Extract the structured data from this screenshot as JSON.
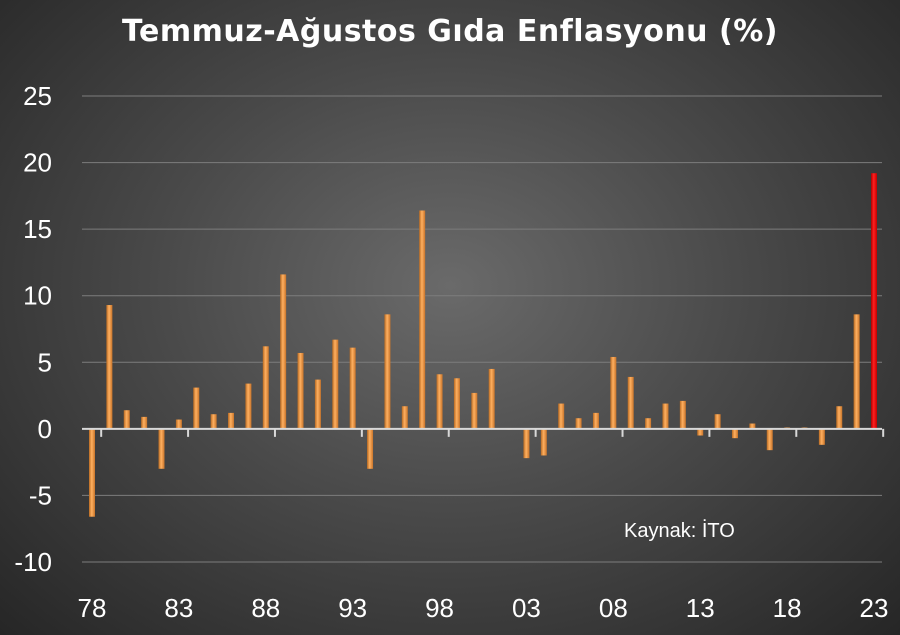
{
  "chart_data": {
    "type": "bar",
    "title": "Temmuz-Ağustos Gıda Enflasyonu (%)",
    "xlabel": "",
    "ylabel": "",
    "ylim": [
      -10,
      25
    ],
    "yticks": [
      "25",
      "20",
      "15",
      "10",
      "5",
      "0",
      "-5",
      "-10"
    ],
    "xtick_labels": [
      "78",
      "83",
      "88",
      "93",
      "98",
      "03",
      "08",
      "13",
      "18",
      "23"
    ],
    "categories": [
      "1978",
      "1979",
      "1980",
      "1981",
      "1982",
      "1983",
      "1984",
      "1985",
      "1986",
      "1987",
      "1988",
      "1989",
      "1990",
      "1991",
      "1992",
      "1993",
      "1994",
      "1995",
      "1996",
      "1997",
      "1998",
      "1999",
      "2000",
      "2001",
      "2002",
      "2003",
      "2004",
      "2005",
      "2006",
      "2007",
      "2008",
      "2009",
      "2010",
      "2011",
      "2012",
      "2013",
      "2014",
      "2015",
      "2016",
      "2017",
      "2018",
      "2019",
      "2020",
      "2021",
      "2022",
      "2023"
    ],
    "values": [
      -6.6,
      9.3,
      1.4,
      0.9,
      -3.0,
      0.7,
      3.1,
      1.1,
      1.2,
      3.4,
      6.2,
      11.6,
      5.7,
      3.7,
      6.7,
      6.1,
      -3.0,
      8.6,
      1.7,
      16.4,
      4.1,
      3.8,
      2.7,
      4.5,
      0.0,
      -2.2,
      -2.0,
      1.9,
      0.8,
      1.2,
      5.4,
      3.9,
      0.8,
      1.9,
      2.1,
      -0.5,
      1.1,
      -0.7,
      0.4,
      -1.6,
      0.1,
      0.1,
      -1.2,
      1.7,
      8.6,
      19.2
    ],
    "highlight_index": 45,
    "bar_color": "#e8913a",
    "highlight_color": "#e00000",
    "grid": true,
    "source_note": "Kaynak: İTO"
  }
}
